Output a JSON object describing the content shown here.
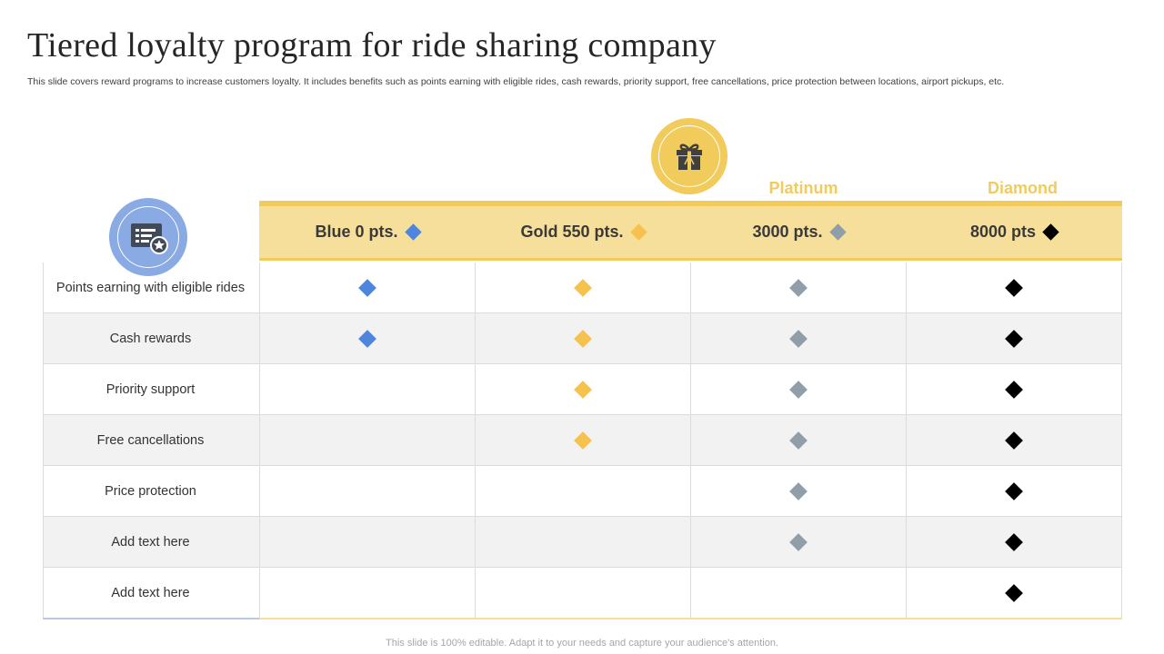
{
  "title": "Tiered loyalty program for ride sharing company",
  "subtitle": "This slide covers reward programs to increase customers loyalty. It includes benefits such as points earning with eligible rides, cash rewards, priority support, free cancellations, price protection between locations, airport pickups, etc.",
  "icons": {
    "gift": "gift-icon",
    "card": "reward-card-icon",
    "marker": "diamond-icon"
  },
  "colors": {
    "blue": "#4e86de",
    "gold": "#f4c24d",
    "platinum": "#8f9ea9",
    "diamond": "#000000",
    "accent": "#f1cc5c",
    "band": "#f5df9a"
  },
  "tier_names": {
    "platinum": "Platinum",
    "diamond": "Diamond"
  },
  "tiers": [
    {
      "label": "Blue 0 pts.",
      "color": "#4e86de"
    },
    {
      "label": "Gold 550 pts.",
      "color": "#f4c24d"
    },
    {
      "label": "3000 pts.",
      "color": "#8f9ea9"
    },
    {
      "label": "8000 pts",
      "color": "#000000"
    }
  ],
  "rows": [
    {
      "label": "Points earning with eligible rides",
      "has": [
        true,
        true,
        true,
        true
      ]
    },
    {
      "label": "Cash rewards",
      "has": [
        true,
        true,
        true,
        true
      ]
    },
    {
      "label": "Priority support",
      "has": [
        false,
        true,
        true,
        true
      ]
    },
    {
      "label": "Free cancellations",
      "has": [
        false,
        true,
        true,
        true
      ]
    },
    {
      "label": "Price protection",
      "has": [
        false,
        false,
        true,
        true
      ]
    },
    {
      "label": "Add text here",
      "has": [
        false,
        false,
        true,
        true
      ]
    },
    {
      "label": "Add text here",
      "has": [
        false,
        false,
        false,
        true
      ]
    }
  ],
  "footer": "This slide is 100% editable. Adapt it to your needs and capture your audience's attention."
}
